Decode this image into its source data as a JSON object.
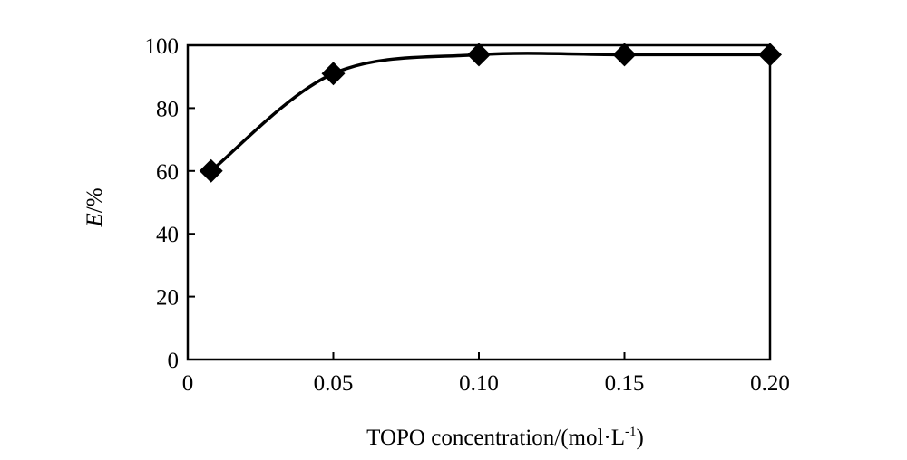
{
  "chart_data": {
    "type": "line",
    "title": "",
    "xlabel": "TOPO concentration/(mol·L",
    "xlabel_superscript": "-1",
    "xlabel_suffix": ")",
    "ylabel_italic": "E",
    "ylabel_rest": "/%",
    "xlim": [
      0,
      0.2
    ],
    "ylim": [
      0,
      100
    ],
    "xticks": [
      0,
      0.05,
      0.1,
      0.15,
      0.2
    ],
    "xtick_labels": [
      "0",
      "0.05",
      "0.10",
      "0.15",
      "0.20"
    ],
    "yticks": [
      0,
      20,
      40,
      60,
      80,
      100
    ],
    "ytick_labels": [
      "0",
      "20",
      "40",
      "60",
      "80",
      "100"
    ],
    "grid": false,
    "series": [
      {
        "marker": "diamond",
        "x": [
          0.008,
          0.05,
          0.1,
          0.15,
          0.2
        ],
        "y": [
          60,
          91,
          97,
          97,
          97
        ]
      }
    ],
    "colors": {
      "line": "#000000",
      "marker": "#000000"
    }
  }
}
